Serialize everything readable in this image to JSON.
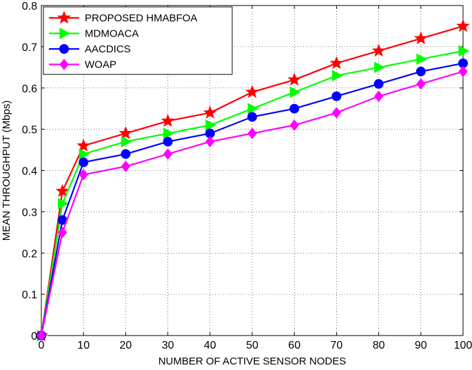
{
  "chart_data": {
    "type": "line",
    "title": "",
    "xlabel": "NUMBER OF ACTIVE SENSOR NODES",
    "ylabel": "MEAN THROUGHPUT (Mbps)",
    "x": [
      0,
      5,
      10,
      20,
      30,
      40,
      50,
      60,
      70,
      80,
      90,
      100
    ],
    "xticks": [
      0,
      10,
      20,
      30,
      40,
      50,
      60,
      70,
      80,
      90,
      100
    ],
    "xtick_labels": [
      "0",
      "10",
      "20",
      "30",
      "40",
      "50",
      "60",
      "70",
      "80",
      "90",
      "100"
    ],
    "yticks": [
      0,
      0.1,
      0.2,
      0.3,
      0.4,
      0.5,
      0.6,
      0.7,
      0.8
    ],
    "ytick_labels": [
      "0",
      "0.1",
      "0.2",
      "0.3",
      "0.4",
      "0.5",
      "0.6",
      "0.7",
      "0.8"
    ],
    "xlim": [
      0,
      100
    ],
    "ylim": [
      0,
      0.8
    ],
    "grid": true,
    "legend_position": "top-left",
    "series": [
      {
        "name": "PROPOSED HMABFOA",
        "color": "#ff0000",
        "marker": "star",
        "values": [
          0,
          0.35,
          0.46,
          0.49,
          0.52,
          0.54,
          0.59,
          0.62,
          0.66,
          0.69,
          0.72,
          0.75
        ]
      },
      {
        "name": "MDMOACA",
        "color": "#00ff00",
        "marker": "triangle-right",
        "values": [
          0,
          0.32,
          0.44,
          0.47,
          0.49,
          0.51,
          0.55,
          0.59,
          0.63,
          0.65,
          0.67,
          0.69
        ]
      },
      {
        "name": "AACDICS",
        "color": "#0000ff",
        "marker": "circle",
        "values": [
          0,
          0.28,
          0.42,
          0.44,
          0.47,
          0.49,
          0.53,
          0.55,
          0.58,
          0.61,
          0.64,
          0.66
        ]
      },
      {
        "name": "WOAP",
        "color": "#ff00ff",
        "marker": "diamond",
        "values": [
          0,
          0.25,
          0.39,
          0.41,
          0.44,
          0.47,
          0.49,
          0.51,
          0.54,
          0.58,
          0.61,
          0.64
        ]
      }
    ]
  }
}
